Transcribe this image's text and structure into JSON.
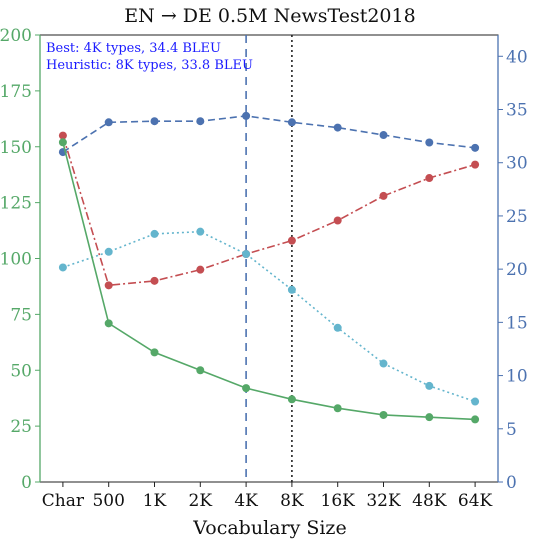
{
  "chart_data": {
    "type": "line",
    "title": "EN → DE 0.5M NewsTest2018",
    "xlabel": "Vocabulary Size",
    "ylabel_left": "",
    "ylabel_right": "",
    "categories": [
      "Char",
      "500",
      "1K",
      "2K",
      "4K",
      "8K",
      "16K",
      "32K",
      "48K",
      "64K"
    ],
    "ylim_left": [
      0,
      200
    ],
    "yticks_left": [
      0,
      25,
      50,
      75,
      100,
      125,
      150,
      175,
      200
    ],
    "ylim_right": [
      0,
      42
    ],
    "yticks_right": [
      0,
      5,
      10,
      15,
      20,
      25,
      30,
      35,
      40
    ],
    "annotations": [
      "Best: 4K types, 34.4 BLEU",
      "Heuristic: 8K types, 33.8 BLEU"
    ],
    "vlines": [
      {
        "category": "4K",
        "style": "dashed",
        "color": "#4c72b0"
      },
      {
        "category": "8K",
        "style": "dotted",
        "color": "#222222"
      }
    ],
    "left_axis_color": "#55a868",
    "right_axis_color": "#4c72b0",
    "grid": false,
    "series": [
      {
        "axis": "right",
        "color": "#4c72b0",
        "style": "dashed",
        "values": [
          31.0,
          33.8,
          33.9,
          33.9,
          34.4,
          33.8,
          33.3,
          32.6,
          31.9,
          31.4
        ]
      },
      {
        "axis": "left",
        "color": "#c44e52",
        "style": "dashdot",
        "values": [
          155,
          88,
          90,
          95,
          102,
          108,
          117,
          128,
          136,
          142
        ]
      },
      {
        "axis": "left",
        "color": "#64b5cd",
        "style": "dotted",
        "values": [
          96,
          103,
          111,
          112,
          102,
          86,
          69,
          53,
          43,
          36
        ]
      },
      {
        "axis": "left",
        "color": "#55a868",
        "style": "solid",
        "values": [
          152,
          71,
          58,
          50,
          42,
          37,
          33,
          30,
          29,
          28
        ]
      }
    ]
  }
}
